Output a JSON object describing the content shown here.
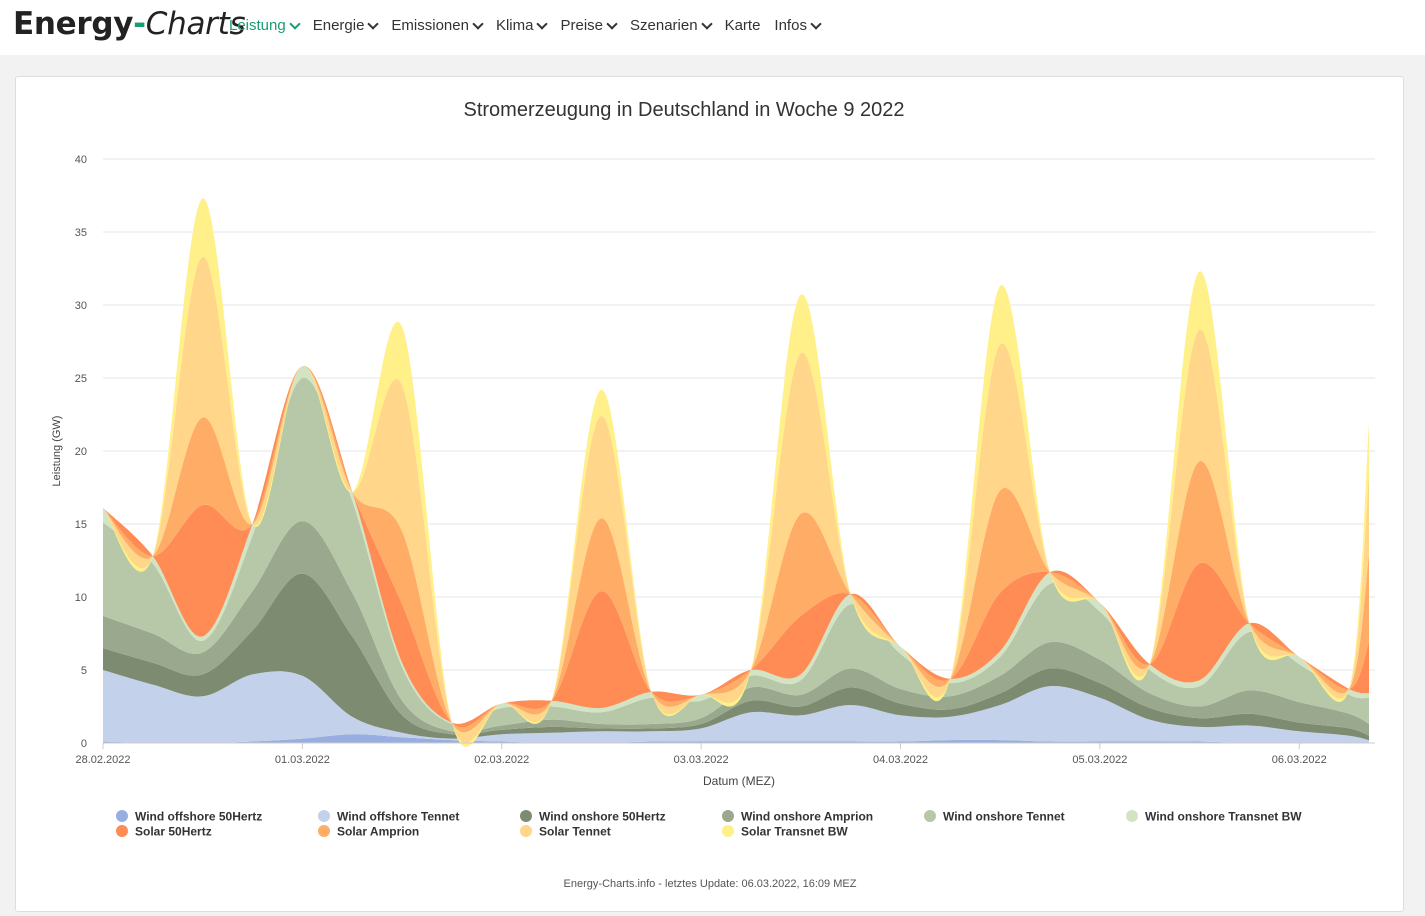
{
  "header": {
    "logo_part1": "Energy",
    "logo_dash": "-",
    "logo_part2": "Charts",
    "nav": [
      {
        "label": "Leistung",
        "dropdown": true,
        "active": true
      },
      {
        "label": "Energie",
        "dropdown": true
      },
      {
        "label": "Emissionen",
        "dropdown": true
      },
      {
        "label": "Klima",
        "dropdown": true
      },
      {
        "label": "Preise",
        "dropdown": true
      },
      {
        "label": "Szenarien",
        "dropdown": true
      },
      {
        "label": "Karte",
        "dropdown": false
      },
      {
        "label": "Infos",
        "dropdown": true
      }
    ]
  },
  "footer_text": "Energy-Charts.info - letztes Update: 06.03.2022, 16:09 MEZ",
  "chart_data": {
    "type": "area",
    "stacked": true,
    "title": "Stromerzeugung in Deutschland in Woche 9 2022",
    "xlabel": "Datum (MEZ)",
    "ylabel": "Leistung (GW)",
    "ylim": [
      0,
      40
    ],
    "yticks": [
      0,
      5,
      10,
      15,
      20,
      25,
      30,
      35,
      40
    ],
    "x_unit": "days since 28.02.2022 00:00",
    "xlim": [
      0,
      6.38
    ],
    "xticks": [
      {
        "x": 0,
        "label": "28.02.2022"
      },
      {
        "x": 1,
        "label": "01.03.2022"
      },
      {
        "x": 2,
        "label": "02.03.2022"
      },
      {
        "x": 3,
        "label": "03.03.2022"
      },
      {
        "x": 4,
        "label": "04.03.2022"
      },
      {
        "x": 5,
        "label": "05.03.2022"
      },
      {
        "x": 6,
        "label": "06.03.2022"
      }
    ],
    "grid": true,
    "legend_position": "bottom",
    "x": [
      0,
      0.25,
      0.5,
      0.75,
      1,
      1.25,
      1.5,
      1.75,
      2,
      2.25,
      2.5,
      2.75,
      3,
      3.25,
      3.5,
      3.75,
      4,
      4.25,
      4.5,
      4.75,
      5,
      5.25,
      5.5,
      5.75,
      6,
      6.25,
      6.35
    ],
    "series": [
      {
        "name": "Wind offshore 50Hertz",
        "color": "#98aee0",
        "values": [
          0.1,
          0,
          0,
          0.1,
          0.3,
          0.6,
          0.4,
          0.2,
          0.1,
          0,
          0,
          0.1,
          0.1,
          0.1,
          0.1,
          0.1,
          0.1,
          0.2,
          0.2,
          0.1,
          0.1,
          0.1,
          0.1,
          0,
          0,
          0,
          0
        ]
      },
      {
        "name": "Wind offshore Tennet",
        "color": "#c3d2ea",
        "values": [
          4.9,
          4,
          3.2,
          4.6,
          4.3,
          1.2,
          0.3,
          0.1,
          0.5,
          0.7,
          0.8,
          0.7,
          0.9,
          2,
          1.8,
          2.5,
          1.8,
          1.6,
          2.4,
          3.8,
          3,
          1.5,
          1,
          1.2,
          0.8,
          0.5,
          0.2
        ]
      },
      {
        "name": "Wind onshore 50Hertz",
        "color": "#7d8b70",
        "values": [
          1.5,
          1.5,
          1.5,
          3,
          7,
          5.5,
          1.2,
          0.3,
          0.3,
          0.4,
          0.2,
          0.2,
          0.3,
          0.8,
          0.6,
          1.2,
          0.8,
          0.5,
          0.8,
          1.2,
          1,
          0.8,
          0.6,
          0.8,
          0.6,
          0.5,
          0.3
        ]
      },
      {
        "name": "Wind onshore Amprion",
        "color": "#9aa88d",
        "values": [
          2.2,
          2,
          1.5,
          2.7,
          3.6,
          3,
          1,
          0.2,
          0.3,
          0.5,
          0.3,
          0.3,
          0.4,
          0.9,
          0.8,
          1.3,
          1,
          0.9,
          1.2,
          1.8,
          1.6,
          1,
          0.8,
          1.6,
          1.4,
          1,
          0.8
        ]
      },
      {
        "name": "Wind onshore Tennet",
        "color": "#b7c8a9",
        "values": [
          6.4,
          4.8,
          0.8,
          3.8,
          9.8,
          6.3,
          2.3,
          0.5,
          1.2,
          0.9,
          0.8,
          1.8,
          1.2,
          0.8,
          1,
          4.4,
          2.4,
          0.9,
          1.3,
          4,
          3.3,
          1.6,
          1.4,
          4,
          2.6,
          1.3,
          1.8
        ]
      },
      {
        "name": "Wind onshore Transnet BW",
        "color": "#d3e4c5",
        "values": [
          1,
          0.5,
          0.3,
          0.8,
          0.8,
          0.6,
          0.3,
          0.1,
          0.3,
          0.4,
          0.3,
          0.4,
          0.4,
          0.4,
          0.4,
          0.7,
          0.5,
          0.3,
          0.4,
          0.8,
          0.6,
          0.4,
          0.4,
          0.6,
          0.5,
          0.4,
          0.3
        ]
      },
      {
        "name": "Solar 50Hertz",
        "color": "#ff8c55",
        "values": [
          0,
          0,
          9,
          0,
          0,
          0,
          4,
          0,
          0,
          0,
          8,
          0,
          0,
          0,
          4,
          0,
          0,
          0,
          4,
          0,
          0,
          0,
          8,
          0,
          0,
          0,
          3.5
        ]
      },
      {
        "name": "Solar Amprion",
        "color": "#ffad66",
        "values": [
          0,
          0,
          6,
          0,
          0,
          0,
          5,
          0,
          0,
          0,
          5,
          0,
          0,
          0,
          7,
          0,
          0,
          0,
          7,
          0,
          0,
          0,
          7,
          0,
          0,
          0,
          6
        ]
      },
      {
        "name": "Solar Tennet",
        "color": "#ffd68a",
        "values": [
          0,
          0,
          11,
          0,
          0,
          0,
          10,
          0,
          0,
          0,
          7,
          0,
          0,
          0,
          11,
          0,
          0,
          0,
          10,
          0,
          0,
          0,
          9,
          0,
          0,
          0,
          5.5
        ]
      },
      {
        "name": "Solar Transnet BW",
        "color": "#fff08a",
        "values": [
          0,
          0,
          4,
          0,
          0,
          0,
          4,
          0,
          0,
          0,
          1.8,
          0,
          0,
          0,
          4,
          0,
          0,
          0,
          4,
          0,
          0,
          0,
          4,
          0,
          0,
          0,
          3.5
        ]
      }
    ]
  }
}
